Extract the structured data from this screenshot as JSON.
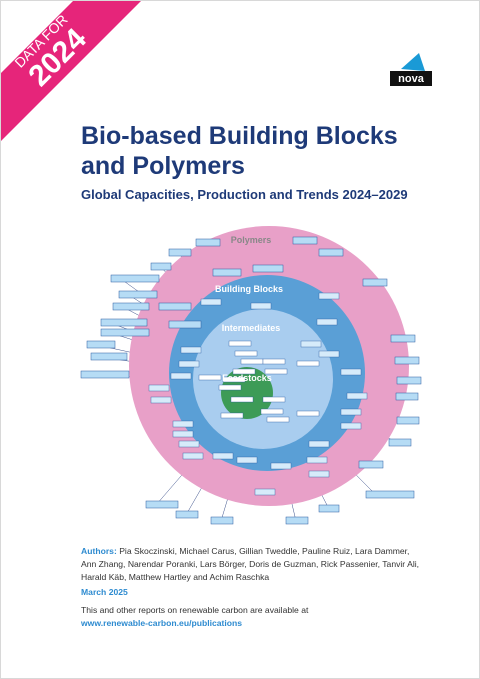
{
  "ribbon": {
    "line1": "DATA FOR",
    "line2": "2024"
  },
  "logo": "nova",
  "title": {
    "line1": "Bio-based Building Blocks",
    "line2": "and Polymers"
  },
  "subtitle": "Global Capacities, Production and Trends 2024–2029",
  "diagram": {
    "outer": "Polymers",
    "ring2": "Building Blocks",
    "ring3": "Intermediates",
    "center": "Feedstocks"
  },
  "authors": {
    "label": "Authors:",
    "names": "Pia Skoczinski, Michael Carus, Gillian Tweddle, Pauline Ruiz, Lara Dammer, Ann Zhang, Narendar Poranki, Lars Börger, Doris de Guzman, Rick Passenier, Tanvir Ali, Harald Käb, Matthew Hartley and Achim Raschka"
  },
  "date": "March 2025",
  "availability": "This and other reports on renewable carbon are available at",
  "url": "www.renewable-carbon.eu/publications"
}
